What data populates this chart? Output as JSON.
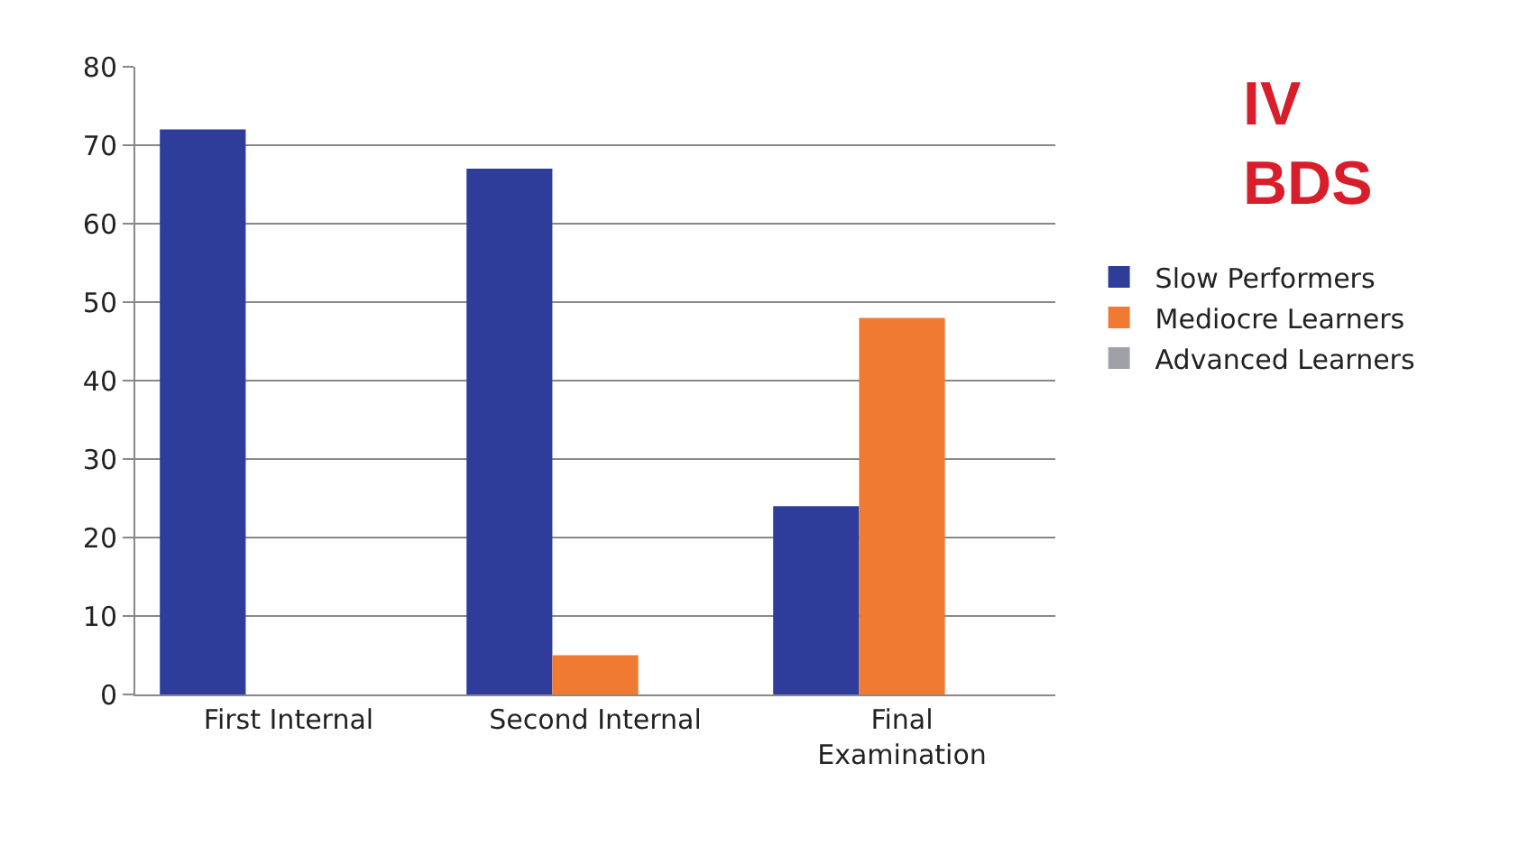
{
  "chart_data": {
    "type": "bar",
    "title": "IV BDS",
    "categories": [
      "First Internal",
      "Second Internal",
      "Final Examination"
    ],
    "series": [
      {
        "name": "Slow Performers",
        "color": "#2e3d9a",
        "values": [
          72,
          67,
          24
        ]
      },
      {
        "name": "Mediocre Learners",
        "color": "#f07a32",
        "values": [
          0,
          5,
          48
        ]
      },
      {
        "name": "Advanced Learners",
        "color": "#a0a0a8",
        "values": [
          0,
          0,
          0
        ]
      }
    ],
    "ylim": [
      0,
      80
    ],
    "yticks": [
      0,
      10,
      20,
      30,
      40,
      50,
      60,
      70,
      80
    ],
    "grid": "y",
    "legend": "right"
  }
}
